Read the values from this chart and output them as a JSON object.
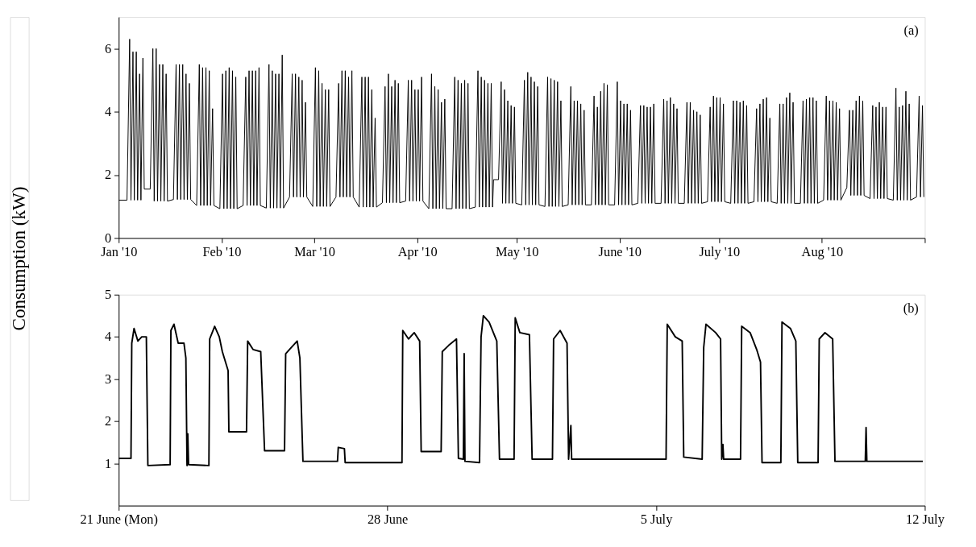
{
  "chart_data": [
    {
      "type": "line",
      "ylabel": "Consumption (kW)",
      "annotations": [
        "(a)"
      ],
      "xlim": [
        "2010-01-01T00:00",
        "2010-09-01T00:00"
      ],
      "ylim": [
        0,
        7
      ],
      "xticks": [
        {
          "value": "2010-01-01T00:00",
          "label": "Jan '10"
        },
        {
          "value": "2010-02-01T00:00",
          "label": "Feb '10"
        },
        {
          "value": "2010-03-01T00:00",
          "label": "Mar '10"
        },
        {
          "value": "2010-04-01T00:00",
          "label": "Apr '10"
        },
        {
          "value": "2010-05-01T00:00",
          "label": "May '10"
        },
        {
          "value": "2010-06-01T00:00",
          "label": "June '10"
        },
        {
          "value": "2010-07-01T00:00",
          "label": "July '10"
        },
        {
          "value": "2010-08-01T00:00",
          "label": "Aug '10"
        },
        {
          "value": "2010-09-01T00:00",
          "label": null
        }
      ],
      "yticks": [
        0,
        2,
        4,
        6
      ],
      "line_style": "solid",
      "series": [
        {
          "color": "#000000",
          "x": [
            "2010-01-01T00:00",
            "2010-01-03T12:00",
            "2010-01-04T07:12",
            "2010-01-04T16:48",
            "2010-01-05T07:12",
            "2010-01-05T16:48",
            "2010-01-06T07:12",
            "2010-01-06T16:48",
            "2010-01-07T07:12",
            "2010-01-07T16:48",
            "2010-01-08T07:12",
            "2010-01-08T16:48",
            "2010-01-10T12:00",
            "2010-01-11T07:12",
            "2010-01-11T16:48",
            "2010-01-12T07:12",
            "2010-01-12T16:48",
            "2010-01-13T07:12",
            "2010-01-13T16:48",
            "2010-01-14T07:12",
            "2010-01-14T16:48",
            "2010-01-15T07:12",
            "2010-01-15T16:48",
            "2010-01-17T12:00",
            "2010-01-18T07:12",
            "2010-01-18T16:48",
            "2010-01-19T07:12",
            "2010-01-19T16:48",
            "2010-01-20T07:12",
            "2010-01-20T16:48",
            "2010-01-21T07:12",
            "2010-01-21T16:48",
            "2010-01-22T07:12",
            "2010-01-22T16:48",
            "2010-01-24T12:00",
            "2010-01-25T07:12",
            "2010-01-25T16:48",
            "2010-01-26T07:12",
            "2010-01-26T16:48",
            "2010-01-27T07:12",
            "2010-01-27T16:48",
            "2010-01-28T07:12",
            "2010-01-28T16:48",
            "2010-01-29T07:12",
            "2010-01-29T16:48",
            "2010-01-31T12:00",
            "2010-02-01T07:12",
            "2010-02-01T16:48",
            "2010-02-02T07:12",
            "2010-02-02T16:48",
            "2010-02-03T07:12",
            "2010-02-03T16:48",
            "2010-02-04T07:12",
            "2010-02-04T16:48",
            "2010-02-05T07:12",
            "2010-02-05T16:48",
            "2010-02-07T12:00",
            "2010-02-08T07:12",
            "2010-02-08T16:48",
            "2010-02-09T07:12",
            "2010-02-09T16:48",
            "2010-02-10T07:12",
            "2010-02-10T16:48",
            "2010-02-11T07:12",
            "2010-02-11T16:48",
            "2010-02-12T07:12",
            "2010-02-12T16:48",
            "2010-02-14T12:00",
            "2010-02-15T07:12",
            "2010-02-15T16:48",
            "2010-02-16T07:12",
            "2010-02-16T16:48",
            "2010-02-17T07:12",
            "2010-02-17T16:48",
            "2010-02-18T07:12",
            "2010-02-18T16:48",
            "2010-02-19T07:12",
            "2010-02-19T16:48",
            "2010-02-21T12:00",
            "2010-02-22T07:12",
            "2010-02-22T16:48",
            "2010-02-23T07:12",
            "2010-02-23T16:48",
            "2010-02-24T07:12",
            "2010-02-24T16:48",
            "2010-02-25T07:12",
            "2010-02-25T16:48",
            "2010-02-26T07:12",
            "2010-02-26T16:48",
            "2010-02-28T12:00",
            "2010-03-01T07:12",
            "2010-03-01T16:48",
            "2010-03-02T07:12",
            "2010-03-02T16:48",
            "2010-03-03T07:12",
            "2010-03-03T16:48",
            "2010-03-04T07:12",
            "2010-03-04T16:48",
            "2010-03-05T07:12",
            "2010-03-05T16:48",
            "2010-03-07T12:00",
            "2010-03-08T07:12",
            "2010-03-08T16:48",
            "2010-03-09T07:12",
            "2010-03-09T16:48",
            "2010-03-10T07:12",
            "2010-03-10T16:48",
            "2010-03-11T07:12",
            "2010-03-11T16:48",
            "2010-03-12T07:12",
            "2010-03-12T16:48",
            "2010-03-14T12:00",
            "2010-03-15T07:12",
            "2010-03-15T16:48",
            "2010-03-16T07:12",
            "2010-03-16T16:48",
            "2010-03-17T07:12",
            "2010-03-17T16:48",
            "2010-03-18T07:12",
            "2010-03-18T16:48",
            "2010-03-19T07:12",
            "2010-03-19T16:48",
            "2010-03-21T12:00",
            "2010-03-22T07:12",
            "2010-03-22T16:48",
            "2010-03-23T07:12",
            "2010-03-23T16:48",
            "2010-03-24T07:12",
            "2010-03-24T16:48",
            "2010-03-25T07:12",
            "2010-03-25T16:48",
            "2010-03-26T07:12",
            "2010-03-26T16:48",
            "2010-03-28T12:00",
            "2010-03-29T07:12",
            "2010-03-29T16:48",
            "2010-03-30T07:12",
            "2010-03-30T16:48",
            "2010-03-31T07:12",
            "2010-03-31T16:48",
            "2010-04-01T07:12",
            "2010-04-01T16:48",
            "2010-04-02T07:12",
            "2010-04-02T16:48",
            "2010-04-04T12:00",
            "2010-04-05T07:12",
            "2010-04-05T16:48",
            "2010-04-06T07:12",
            "2010-04-06T16:48",
            "2010-04-07T07:12",
            "2010-04-07T16:48",
            "2010-04-08T07:12",
            "2010-04-08T16:48",
            "2010-04-09T07:12",
            "2010-04-09T16:48",
            "2010-04-11T12:00",
            "2010-04-12T07:12",
            "2010-04-12T16:48",
            "2010-04-13T07:12",
            "2010-04-13T16:48",
            "2010-04-14T07:12",
            "2010-04-14T16:48",
            "2010-04-15T07:12",
            "2010-04-15T16:48",
            "2010-04-16T07:12",
            "2010-04-16T16:48",
            "2010-04-18T12:00",
            "2010-04-19T07:12",
            "2010-04-19T16:48",
            "2010-04-20T07:12",
            "2010-04-20T16:48",
            "2010-04-21T07:12",
            "2010-04-21T16:48",
            "2010-04-22T07:12",
            "2010-04-22T16:48",
            "2010-04-23T07:12",
            "2010-04-23T16:48",
            "2010-04-24T00:00",
            "2010-04-25T12:00",
            "2010-04-26T07:12",
            "2010-04-26T16:48",
            "2010-04-27T07:12",
            "2010-04-27T16:48",
            "2010-04-28T07:12",
            "2010-04-28T16:48",
            "2010-04-29T07:12",
            "2010-04-29T16:48",
            "2010-04-30T07:12",
            "2010-04-30T16:48",
            "2010-05-02T12:00",
            "2010-05-03T07:12",
            "2010-05-03T16:48",
            "2010-05-04T07:12",
            "2010-05-04T16:48",
            "2010-05-05T07:12",
            "2010-05-05T16:48",
            "2010-05-06T07:12",
            "2010-05-06T16:48",
            "2010-05-07T07:12",
            "2010-05-07T16:48",
            "2010-05-09T12:00",
            "2010-05-10T07:12",
            "2010-05-10T16:48",
            "2010-05-11T07:12",
            "2010-05-11T16:48",
            "2010-05-12T07:12",
            "2010-05-12T16:48",
            "2010-05-13T07:12",
            "2010-05-13T16:48",
            "2010-05-14T07:12",
            "2010-05-14T16:48",
            "2010-05-16T12:00",
            "2010-05-17T07:12",
            "2010-05-17T16:48",
            "2010-05-18T07:12",
            "2010-05-18T16:48",
            "2010-05-19T07:12",
            "2010-05-19T16:48",
            "2010-05-20T07:12",
            "2010-05-20T16:48",
            "2010-05-21T07:12",
            "2010-05-21T16:48",
            "2010-05-23T12:00",
            "2010-05-24T07:12",
            "2010-05-24T16:48",
            "2010-05-25T07:12",
            "2010-05-25T16:48",
            "2010-05-26T07:12",
            "2010-05-26T16:48",
            "2010-05-27T07:12",
            "2010-05-27T16:48",
            "2010-05-28T07:12",
            "2010-05-28T16:48",
            "2010-05-30T12:00",
            "2010-05-31T07:12",
            "2010-05-31T16:48",
            "2010-06-01T07:12",
            "2010-06-01T16:48",
            "2010-06-02T07:12",
            "2010-06-02T16:48",
            "2010-06-03T07:12",
            "2010-06-03T16:48",
            "2010-06-04T07:12",
            "2010-06-04T16:48",
            "2010-06-06T12:00",
            "2010-06-07T07:12",
            "2010-06-07T16:48",
            "2010-06-08T07:12",
            "2010-06-08T16:48",
            "2010-06-09T07:12",
            "2010-06-09T16:48",
            "2010-06-10T07:12",
            "2010-06-10T16:48",
            "2010-06-11T07:12",
            "2010-06-11T16:48",
            "2010-06-13T12:00",
            "2010-06-14T07:12",
            "2010-06-14T16:48",
            "2010-06-15T07:12",
            "2010-06-15T16:48",
            "2010-06-16T07:12",
            "2010-06-16T16:48",
            "2010-06-17T07:12",
            "2010-06-17T16:48",
            "2010-06-18T07:12",
            "2010-06-18T16:48",
            "2010-06-20T12:00",
            "2010-06-21T07:12",
            "2010-06-21T16:48",
            "2010-06-22T07:12",
            "2010-06-22T16:48",
            "2010-06-23T07:12",
            "2010-06-23T16:48",
            "2010-06-24T07:12",
            "2010-06-24T16:48",
            "2010-06-25T07:12",
            "2010-06-25T16:48",
            "2010-06-27T12:00",
            "2010-06-28T07:12",
            "2010-06-28T16:48",
            "2010-06-29T07:12",
            "2010-06-29T16:48",
            "2010-06-30T07:12",
            "2010-06-30T16:48",
            "2010-07-01T07:12",
            "2010-07-01T16:48",
            "2010-07-02T07:12",
            "2010-07-02T16:48",
            "2010-07-04T12:00",
            "2010-07-05T07:12",
            "2010-07-05T16:48",
            "2010-07-06T07:12",
            "2010-07-06T16:48",
            "2010-07-07T07:12",
            "2010-07-07T16:48",
            "2010-07-08T07:12",
            "2010-07-08T16:48",
            "2010-07-09T07:12",
            "2010-07-09T16:48",
            "2010-07-11T12:00",
            "2010-07-12T07:12",
            "2010-07-12T16:48",
            "2010-07-13T07:12",
            "2010-07-13T16:48",
            "2010-07-14T07:12",
            "2010-07-14T16:48",
            "2010-07-15T07:12",
            "2010-07-15T16:48",
            "2010-07-16T07:12",
            "2010-07-16T16:48",
            "2010-07-18T12:00",
            "2010-07-19T07:12",
            "2010-07-19T16:48",
            "2010-07-20T07:12",
            "2010-07-20T16:48",
            "2010-07-21T07:12",
            "2010-07-21T16:48",
            "2010-07-22T07:12",
            "2010-07-22T16:48",
            "2010-07-23T07:12",
            "2010-07-23T16:48",
            "2010-07-25T12:00",
            "2010-07-26T07:12",
            "2010-07-26T16:48",
            "2010-07-27T07:12",
            "2010-07-27T16:48",
            "2010-07-28T07:12",
            "2010-07-28T16:48",
            "2010-07-29T07:12",
            "2010-07-29T16:48",
            "2010-07-30T07:12",
            "2010-07-30T16:48",
            "2010-08-01T12:00",
            "2010-08-02T07:12",
            "2010-08-02T16:48",
            "2010-08-03T07:12",
            "2010-08-03T16:48",
            "2010-08-04T07:12",
            "2010-08-04T16:48",
            "2010-08-05T07:12",
            "2010-08-05T16:48",
            "2010-08-06T07:12",
            "2010-08-06T16:48",
            "2010-08-08T12:00",
            "2010-08-09T07:12",
            "2010-08-09T16:48",
            "2010-08-10T07:12",
            "2010-08-10T16:48",
            "2010-08-11T07:12",
            "2010-08-11T16:48",
            "2010-08-12T07:12",
            "2010-08-12T16:48",
            "2010-08-13T07:12",
            "2010-08-13T16:48",
            "2010-08-15T12:00",
            "2010-08-16T07:12",
            "2010-08-16T16:48",
            "2010-08-17T07:12",
            "2010-08-17T16:48",
            "2010-08-18T07:12",
            "2010-08-18T16:48",
            "2010-08-19T07:12",
            "2010-08-19T16:48",
            "2010-08-20T07:12",
            "2010-08-20T16:48",
            "2010-08-22T12:00",
            "2010-08-23T07:12",
            "2010-08-23T16:48",
            "2010-08-24T07:12",
            "2010-08-24T16:48",
            "2010-08-25T07:12",
            "2010-08-25T16:48",
            "2010-08-26T07:12",
            "2010-08-26T16:48",
            "2010-08-27T07:12",
            "2010-08-27T16:48",
            "2010-08-29T12:00",
            "2010-08-30T07:12",
            "2010-08-30T16:48",
            "2010-08-31T07:12",
            "2010-08-31T16:48"
          ],
          "values": [
            1.2,
            1.2,
            6.3,
            1.2,
            5.9,
            1.2,
            5.9,
            1.2,
            5.2,
            1.2,
            5.7,
            1.55,
            1.55,
            6.0,
            1.17,
            6.0,
            1.17,
            5.5,
            1.17,
            5.5,
            1.17,
            5.2,
            1.17,
            1.22,
            5.5,
            1.22,
            5.5,
            1.22,
            5.5,
            1.22,
            5.2,
            1.22,
            4.9,
            1.22,
            1.03,
            5.5,
            1.03,
            5.4,
            1.03,
            5.4,
            1.03,
            5.3,
            1.03,
            4.1,
            1.03,
            0.93,
            5.2,
            0.93,
            5.3,
            0.93,
            5.4,
            0.93,
            5.3,
            0.93,
            5.1,
            0.93,
            1.03,
            5.1,
            1.03,
            5.3,
            1.03,
            5.3,
            1.03,
            5.3,
            1.03,
            5.4,
            1.03,
            0.95,
            5.5,
            0.95,
            5.3,
            0.95,
            5.2,
            0.95,
            5.2,
            0.95,
            5.8,
            0.95,
            1.3,
            5.2,
            1.3,
            5.2,
            1.3,
            5.1,
            1.3,
            5.0,
            1.3,
            4.3,
            1.3,
            1.0,
            5.4,
            1.0,
            5.3,
            1.0,
            4.9,
            1.0,
            4.7,
            1.0,
            4.7,
            1.0,
            1.3,
            4.9,
            1.3,
            5.3,
            1.3,
            5.3,
            1.3,
            5.1,
            1.3,
            5.3,
            1.3,
            0.98,
            5.1,
            0.98,
            5.1,
            0.98,
            5.1,
            0.98,
            4.7,
            0.98,
            3.8,
            0.98,
            1.12,
            4.8,
            1.12,
            5.2,
            1.12,
            4.8,
            1.12,
            5.0,
            1.12,
            4.9,
            1.12,
            1.17,
            5.0,
            1.17,
            5.0,
            1.17,
            4.7,
            1.17,
            4.7,
            1.17,
            5.1,
            1.17,
            0.93,
            5.2,
            0.93,
            4.8,
            0.93,
            4.7,
            0.93,
            4.3,
            0.93,
            4.4,
            0.93,
            0.93,
            5.1,
            0.93,
            5.0,
            0.93,
            4.9,
            0.93,
            5.0,
            0.93,
            4.9,
            0.93,
            0.98,
            5.3,
            0.98,
            5.1,
            0.98,
            5.0,
            0.98,
            4.9,
            0.98,
            4.9,
            0.98,
            1.85,
            1.85,
            4.95,
            1.1,
            4.7,
            1.1,
            4.35,
            1.1,
            4.2,
            1.1,
            4.15,
            1.1,
            1.05,
            5.0,
            1.05,
            5.25,
            1.05,
            5.1,
            1.05,
            4.95,
            1.05,
            4.8,
            1.05,
            1.0,
            5.1,
            1.0,
            5.05,
            1.0,
            5.0,
            1.0,
            4.95,
            1.0,
            4.35,
            1.0,
            1.05,
            4.8,
            1.05,
            4.35,
            1.05,
            4.35,
            1.05,
            4.25,
            1.05,
            4.05,
            1.05,
            1.05,
            4.5,
            1.05,
            4.15,
            1.05,
            4.65,
            1.05,
            4.9,
            1.05,
            4.85,
            1.05,
            1.05,
            4.95,
            1.05,
            4.35,
            1.05,
            4.25,
            1.05,
            4.25,
            1.05,
            4.05,
            1.05,
            1.1,
            4.2,
            1.1,
            4.2,
            1.1,
            4.15,
            1.1,
            4.15,
            1.1,
            4.25,
            1.1,
            1.1,
            4.4,
            1.1,
            4.35,
            1.1,
            4.45,
            1.1,
            4.25,
            1.1,
            4.1,
            1.1,
            1.1,
            4.3,
            1.1,
            4.3,
            1.1,
            4.05,
            1.1,
            4.0,
            1.1,
            3.9,
            1.1,
            1.15,
            4.15,
            1.15,
            4.5,
            1.15,
            4.45,
            1.15,
            4.45,
            1.15,
            4.25,
            1.15,
            1.1,
            4.35,
            1.1,
            4.35,
            1.1,
            4.3,
            1.1,
            4.35,
            1.1,
            4.2,
            1.1,
            1.15,
            4.1,
            1.15,
            4.25,
            1.15,
            4.4,
            1.15,
            4.45,
            1.15,
            3.8,
            1.15,
            1.1,
            4.25,
            1.1,
            4.25,
            1.1,
            4.45,
            1.1,
            4.6,
            1.1,
            4.3,
            1.1,
            1.1,
            4.35,
            1.1,
            4.4,
            1.1,
            4.45,
            1.1,
            4.45,
            1.1,
            4.35,
            1.1,
            1.2,
            4.5,
            1.2,
            4.35,
            1.2,
            4.35,
            1.2,
            4.3,
            1.2,
            4.1,
            1.2,
            1.6,
            4.05,
            1.35,
            4.05,
            1.35,
            4.35,
            1.35,
            4.5,
            1.35,
            4.35,
            1.35,
            1.25,
            4.2,
            1.25,
            4.15,
            1.25,
            4.3,
            1.25,
            4.15,
            1.25,
            4.15,
            1.25,
            1.2,
            4.75,
            1.2,
            4.15,
            1.2,
            4.2,
            1.2,
            4.65,
            1.2,
            4.25,
            1.2,
            1.3,
            4.5,
            1.3,
            4.2,
            1.3
          ]
        }
      ]
    },
    {
      "type": "line",
      "annotations": [
        "(b)"
      ],
      "xlim": [
        "2010-06-21T00:00",
        "2010-07-12T00:00"
      ],
      "ylim": [
        0,
        5
      ],
      "xticks": [
        {
          "value": "2010-06-21T00:00",
          "label": "21 June (Mon)"
        },
        {
          "value": "2010-06-28T00:00",
          "label": "28 June"
        },
        {
          "value": "2010-07-05T00:00",
          "label": "5 July"
        },
        {
          "value": "2010-07-12T00:00",
          "label": "12 July"
        }
      ],
      "yticks": [
        1,
        2,
        3,
        4,
        5
      ],
      "line_style": "solid",
      "series": [
        {
          "color": "#000000",
          "x": [
            "2010-06-21T00:00",
            "2010-06-21T07:41",
            "2010-06-21T08:10",
            "2010-06-21T09:36",
            "2010-06-21T12:00",
            "2010-06-21T14:24",
            "2010-06-21T17:17",
            "2010-06-21T18:14",
            "2010-06-22T08:10",
            "2010-06-22T08:38",
            "2010-06-22T10:34",
            "2010-06-22T13:12",
            "2010-06-22T16:48",
            "2010-06-22T18:00",
            "2010-06-22T18:43",
            "2010-06-22T19:12",
            "2010-06-22T19:41",
            "2010-06-23T08:24",
            "2010-06-23T08:53",
            "2010-06-23T12:00",
            "2010-06-23T14:53",
            "2010-06-23T16:48",
            "2010-06-23T20:24",
            "2010-06-23T20:53",
            "2010-06-24T07:55",
            "2010-06-24T08:38",
            "2010-06-24T12:00",
            "2010-06-24T16:48",
            "2010-06-24T19:12",
            "2010-06-25T07:41",
            "2010-06-25T08:24",
            "2010-06-25T12:00",
            "2010-06-25T15:36",
            "2010-06-25T17:17",
            "2010-06-25T18:43",
            "2010-06-25T19:12",
            "2010-06-26T16:48",
            "2010-06-26T17:17",
            "2010-06-26T21:07",
            "2010-06-26T21:36",
            "2010-06-28T09:07",
            "2010-06-28T09:36",
            "2010-06-28T13:12",
            "2010-06-28T16:48",
            "2010-06-28T20:10",
            "2010-06-28T21:07",
            "2010-06-29T09:36",
            "2010-06-29T10:19",
            "2010-06-29T14:24",
            "2010-06-29T19:12",
            "2010-06-29T20:24",
            "2010-06-29T23:31",
            "2010-06-30T00:00",
            "2010-06-30T00:29",
            "2010-06-30T09:36",
            "2010-06-30T10:34",
            "2010-06-30T12:00",
            "2010-06-30T15:36",
            "2010-06-30T20:24",
            "2010-06-30T22:05",
            "2010-07-01T07:12",
            "2010-07-01T07:55",
            "2010-07-01T10:48",
            "2010-07-01T16:48",
            "2010-07-01T18:29",
            "2010-07-02T07:12",
            "2010-07-02T07:55",
            "2010-07-02T12:00",
            "2010-07-02T16:19",
            "2010-07-02T17:17",
            "2010-07-02T18:43",
            "2010-07-02T19:12",
            "2010-07-05T06:14",
            "2010-07-05T06:58",
            "2010-07-05T12:00",
            "2010-07-05T16:19",
            "2010-07-05T17:17",
            "2010-07-06T04:48",
            "2010-07-06T05:46",
            "2010-07-06T07:12",
            "2010-07-06T13:12",
            "2010-07-06T16:19",
            "2010-07-06T17:02",
            "2010-07-06T17:46",
            "2010-07-06T18:14",
            "2010-07-07T04:48",
            "2010-07-07T05:31",
            "2010-07-07T10:48",
            "2010-07-07T14:53",
            "2010-07-07T17:17",
            "2010-07-07T18:14",
            "2010-07-08T06:00",
            "2010-07-08T06:43",
            "2010-07-08T12:00",
            "2010-07-08T15:22",
            "2010-07-08T16:34",
            "2010-07-09T05:17",
            "2010-07-09T06:00",
            "2010-07-09T09:36",
            "2010-07-09T14:24",
            "2010-07-09T15:50",
            "2010-07-10T10:48",
            "2010-07-10T11:17",
            "2010-07-10T11:46",
            "2010-07-11T22:48"
          ],
          "values": [
            1.12,
            1.12,
            3.85,
            4.2,
            3.9,
            4.0,
            4.0,
            0.95,
            0.97,
            4.15,
            4.3,
            3.85,
            3.85,
            3.5,
            0.95,
            1.7,
            0.97,
            0.95,
            3.95,
            4.25,
            4.0,
            3.65,
            3.2,
            1.75,
            1.75,
            3.9,
            3.7,
            3.65,
            1.3,
            1.3,
            3.6,
            3.75,
            3.9,
            3.5,
            1.65,
            1.05,
            1.05,
            1.38,
            1.35,
            1.02,
            1.02,
            4.15,
            3.95,
            4.1,
            3.9,
            1.28,
            1.28,
            3.65,
            3.8,
            3.95,
            1.12,
            1.1,
            3.6,
            1.05,
            1.02,
            4.0,
            4.5,
            4.35,
            3.9,
            1.1,
            1.1,
            4.45,
            4.1,
            4.05,
            1.1,
            1.1,
            3.95,
            4.15,
            3.85,
            1.1,
            1.9,
            1.1,
            1.1,
            4.3,
            4.0,
            3.9,
            1.15,
            1.1,
            3.75,
            4.3,
            4.1,
            3.95,
            1.1,
            1.45,
            1.1,
            1.1,
            4.25,
            4.1,
            3.7,
            3.4,
            1.02,
            1.02,
            4.35,
            4.2,
            3.9,
            1.02,
            1.02,
            3.95,
            4.1,
            3.95,
            1.05,
            1.05,
            1.85,
            1.05,
            1.05
          ]
        }
      ]
    }
  ]
}
